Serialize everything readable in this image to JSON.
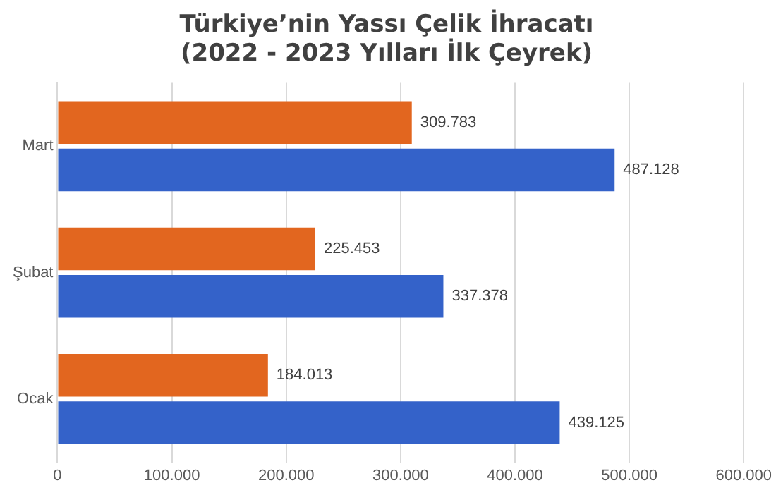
{
  "chart_data": {
    "type": "bar",
    "orientation": "horizontal",
    "title": "Türkiye’nin Yassı Çelik İhracatı\n(2022 - 2023 Yılları İlk Çeyrek)",
    "categories": [
      "Mart",
      "Şubat",
      "Ocak"
    ],
    "series": [
      {
        "color": "#e2661f",
        "values": [
          309783,
          225453,
          184013
        ],
        "value_labels": [
          "309.783",
          "225.453",
          "184.013"
        ]
      },
      {
        "color": "#3462c9",
        "values": [
          487128,
          337378,
          439125
        ],
        "value_labels": [
          "487.128",
          "337.378",
          "439.125"
        ]
      }
    ],
    "xlim": [
      0,
      600000
    ],
    "xticks": [
      {
        "value": 0,
        "label": "0"
      },
      {
        "value": 100000,
        "label": "100.000"
      },
      {
        "value": 200000,
        "label": "200.000"
      },
      {
        "value": 300000,
        "label": "300.000"
      },
      {
        "value": 400000,
        "label": "400.000"
      },
      {
        "value": 500000,
        "label": "500.000"
      },
      {
        "value": 600000,
        "label": "600.000"
      }
    ],
    "grid": "x"
  }
}
